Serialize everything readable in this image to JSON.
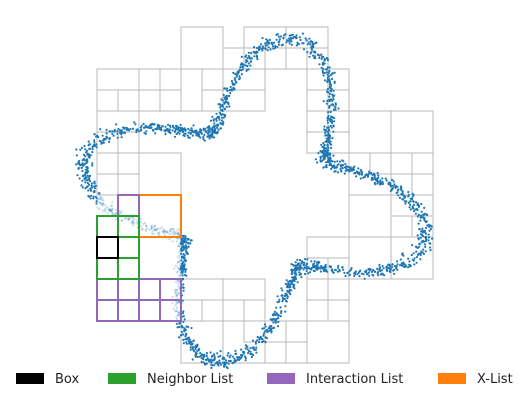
{
  "legend": [
    {
      "label": "Box",
      "color": "#000000"
    },
    {
      "label": "Neighbor List",
      "color": "#2ca02c"
    },
    {
      "label": "Interaction List",
      "color": "#9467bd"
    },
    {
      "label": "X-List",
      "color": "#ff7f0e"
    }
  ],
  "colors": {
    "points": "#1f77b4",
    "grid": "#b8b8b8",
    "box": "#000000",
    "neighbor": "#2ca02c",
    "interaction": "#9467bd",
    "xlist": "#ff7f0e"
  }
}
